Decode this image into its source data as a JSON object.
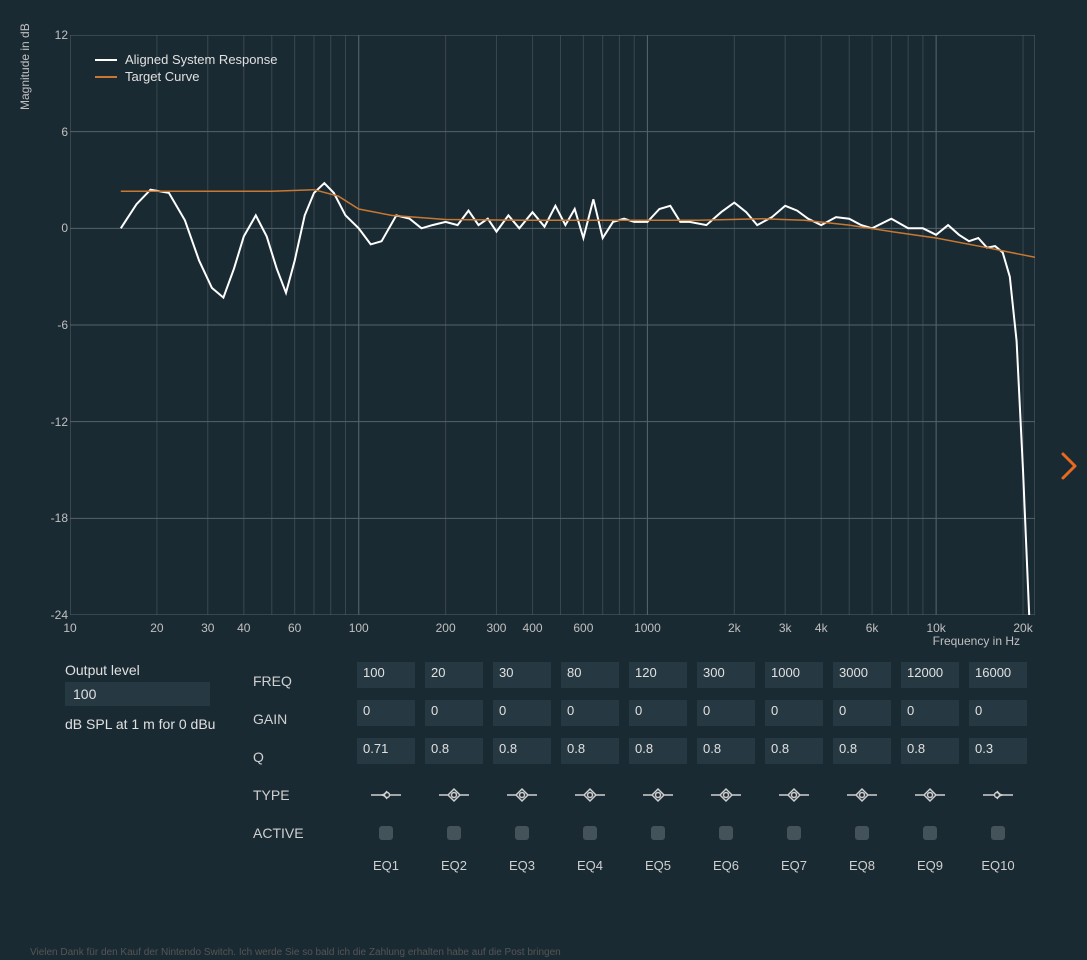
{
  "chart": {
    "type": "line",
    "ylabel": "Magnitude in dB",
    "xlabel": "Frequency in Hz",
    "ylim": [
      -24,
      12
    ],
    "yticks": [
      12,
      6,
      0,
      -6,
      -12,
      -18,
      -24
    ],
    "xlim": [
      10,
      22000
    ],
    "xscale": "log",
    "xticks_major": [
      10,
      100,
      1000,
      10000
    ],
    "xticks_labeled": [
      {
        "v": 10,
        "l": "10"
      },
      {
        "v": 20,
        "l": "20"
      },
      {
        "v": 30,
        "l": "30"
      },
      {
        "v": 40,
        "l": "40"
      },
      {
        "v": 60,
        "l": "60"
      },
      {
        "v": 100,
        "l": "100"
      },
      {
        "v": 200,
        "l": "200"
      },
      {
        "v": 300,
        "l": "300"
      },
      {
        "v": 400,
        "l": "400"
      },
      {
        "v": 600,
        "l": "600"
      },
      {
        "v": 1000,
        "l": "1000"
      },
      {
        "v": 2000,
        "l": "2k"
      },
      {
        "v": 3000,
        "l": "3k"
      },
      {
        "v": 4000,
        "l": "4k"
      },
      {
        "v": 6000,
        "l": "6k"
      },
      {
        "v": 10000,
        "l": "10k"
      },
      {
        "v": 20000,
        "l": "20k"
      }
    ],
    "xticks_minor": [
      10,
      20,
      30,
      40,
      50,
      60,
      70,
      80,
      90,
      100,
      200,
      300,
      400,
      500,
      600,
      700,
      800,
      900,
      1000,
      2000,
      3000,
      4000,
      5000,
      6000,
      7000,
      8000,
      9000,
      10000,
      20000
    ],
    "background_color": "#1a2a33",
    "grid_color": "#566369",
    "minor_grid_color": "#3a474e",
    "series": [
      {
        "name": "Aligned System Response",
        "color": "#ffffff",
        "stroke_width": 2,
        "data": [
          [
            15,
            0
          ],
          [
            17,
            1.5
          ],
          [
            19,
            2.4
          ],
          [
            22,
            2.2
          ],
          [
            25,
            0.5
          ],
          [
            28,
            -2.0
          ],
          [
            31,
            -3.7
          ],
          [
            34,
            -4.3
          ],
          [
            37,
            -2.5
          ],
          [
            40,
            -0.5
          ],
          [
            44,
            0.8
          ],
          [
            48,
            -0.5
          ],
          [
            52,
            -2.5
          ],
          [
            56,
            -4.0
          ],
          [
            60,
            -2.0
          ],
          [
            65,
            0.8
          ],
          [
            70,
            2.2
          ],
          [
            76,
            2.8
          ],
          [
            82,
            2.2
          ],
          [
            90,
            0.8
          ],
          [
            100,
            0.0
          ],
          [
            110,
            -1.0
          ],
          [
            120,
            -0.8
          ],
          [
            135,
            0.8
          ],
          [
            150,
            0.6
          ],
          [
            165,
            0.0
          ],
          [
            180,
            0.2
          ],
          [
            200,
            0.4
          ],
          [
            220,
            0.2
          ],
          [
            240,
            1.1
          ],
          [
            260,
            0.2
          ],
          [
            280,
            0.6
          ],
          [
            300,
            -0.2
          ],
          [
            330,
            0.8
          ],
          [
            360,
            0.0
          ],
          [
            400,
            1.0
          ],
          [
            440,
            0.1
          ],
          [
            480,
            1.4
          ],
          [
            520,
            0.2
          ],
          [
            560,
            1.2
          ],
          [
            600,
            -0.6
          ],
          [
            650,
            1.8
          ],
          [
            700,
            -0.6
          ],
          [
            760,
            0.4
          ],
          [
            830,
            0.6
          ],
          [
            900,
            0.4
          ],
          [
            1000,
            0.4
          ],
          [
            1100,
            1.2
          ],
          [
            1200,
            1.4
          ],
          [
            1300,
            0.4
          ],
          [
            1400,
            0.4
          ],
          [
            1600,
            0.2
          ],
          [
            1800,
            1.0
          ],
          [
            2000,
            1.6
          ],
          [
            2200,
            1.0
          ],
          [
            2400,
            0.2
          ],
          [
            2700,
            0.7
          ],
          [
            3000,
            1.4
          ],
          [
            3300,
            1.1
          ],
          [
            3600,
            0.6
          ],
          [
            4000,
            0.2
          ],
          [
            4500,
            0.7
          ],
          [
            5000,
            0.6
          ],
          [
            5500,
            0.2
          ],
          [
            6000,
            0.0
          ],
          [
            7000,
            0.6
          ],
          [
            8000,
            0.0
          ],
          [
            9000,
            0.0
          ],
          [
            10000,
            -0.4
          ],
          [
            11000,
            0.2
          ],
          [
            12000,
            -0.4
          ],
          [
            13000,
            -0.8
          ],
          [
            14000,
            -0.6
          ],
          [
            15000,
            -1.2
          ],
          [
            16000,
            -1.1
          ],
          [
            17000,
            -1.5
          ],
          [
            18000,
            -3.0
          ],
          [
            19000,
            -7.0
          ],
          [
            20000,
            -15.0
          ],
          [
            21000,
            -24.0
          ]
        ]
      },
      {
        "name": "Target Curve",
        "color": "#c87830",
        "stroke_width": 1.5,
        "data": [
          [
            15,
            2.3
          ],
          [
            50,
            2.3
          ],
          [
            70,
            2.4
          ],
          [
            85,
            2.0
          ],
          [
            100,
            1.2
          ],
          [
            130,
            0.8
          ],
          [
            200,
            0.55
          ],
          [
            400,
            0.5
          ],
          [
            800,
            0.5
          ],
          [
            1500,
            0.5
          ],
          [
            2500,
            0.6
          ],
          [
            3500,
            0.5
          ],
          [
            5000,
            0.2
          ],
          [
            7000,
            -0.2
          ],
          [
            10000,
            -0.6
          ],
          [
            15000,
            -1.2
          ],
          [
            22000,
            -1.8
          ]
        ]
      }
    ],
    "legend_position": "top-left"
  },
  "output": {
    "label": "Output level",
    "value": "100",
    "unit": "dB SPL at 1 m for 0 dBu"
  },
  "eq_row_labels": {
    "freq": "FREQ",
    "gain": "GAIN",
    "q": "Q",
    "type": "TYPE",
    "active": "ACTIVE"
  },
  "eq": [
    {
      "name": "EQ1",
      "freq": "100",
      "gain": "0",
      "q": "0.71",
      "type": "lowshelf",
      "active": false
    },
    {
      "name": "EQ2",
      "freq": "20",
      "gain": "0",
      "q": "0.8",
      "type": "bell",
      "active": false
    },
    {
      "name": "EQ3",
      "freq": "30",
      "gain": "0",
      "q": "0.8",
      "type": "bell",
      "active": false
    },
    {
      "name": "EQ4",
      "freq": "80",
      "gain": "0",
      "q": "0.8",
      "type": "bell",
      "active": false
    },
    {
      "name": "EQ5",
      "freq": "120",
      "gain": "0",
      "q": "0.8",
      "type": "bell",
      "active": false
    },
    {
      "name": "EQ6",
      "freq": "300",
      "gain": "0",
      "q": "0.8",
      "type": "bell",
      "active": false
    },
    {
      "name": "EQ7",
      "freq": "1000",
      "gain": "0",
      "q": "0.8",
      "type": "bell",
      "active": false
    },
    {
      "name": "EQ8",
      "freq": "3000",
      "gain": "0",
      "q": "0.8",
      "type": "bell",
      "active": false
    },
    {
      "name": "EQ9",
      "freq": "12000",
      "gain": "0",
      "q": "0.8",
      "type": "bell",
      "active": false
    },
    {
      "name": "EQ10",
      "freq": "16000",
      "gain": "0",
      "q": "0.3",
      "type": "highshelf",
      "active": false
    }
  ],
  "colors": {
    "bg": "#1a2a33",
    "cell_bg": "#263841",
    "text": "#d0d0d0",
    "chevron": "#e86a1f"
  },
  "footer": "Vielen Dank für den Kauf der Nintendo Switch. Ich werde Sie so bald ich die Zahlung erhalten habe auf die Post bringen"
}
